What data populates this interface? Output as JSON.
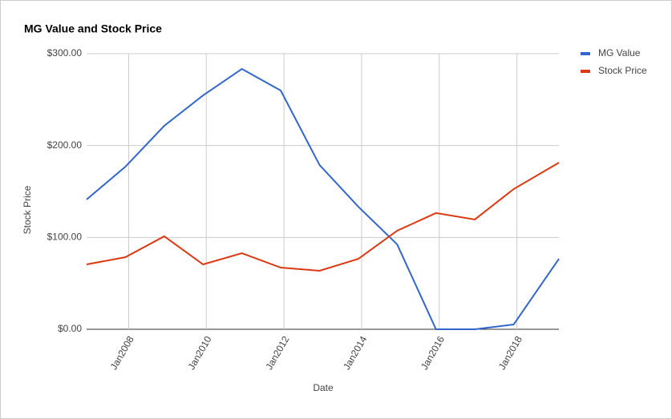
{
  "chart_data": {
    "type": "line",
    "title": "MG Value and Stock Price",
    "x_label": "Date",
    "y_label": "Stock Price",
    "x": [
      "2006-12",
      "2007-12",
      "2008-12",
      "2009-12",
      "2010-12",
      "2011-12",
      "2012-12",
      "2013-12",
      "2014-12",
      "2015-12",
      "2016-12",
      "2017-12",
      "2019-02"
    ],
    "series": [
      {
        "name": "MG Value",
        "color": "#3366cc",
        "values": [
          141.3,
          177,
          221.5,
          254.6,
          283.4,
          259.9,
          178.8,
          133.4,
          92.4,
          0,
          0,
          5.2,
          76.7
        ]
      },
      {
        "name": "Stock Price",
        "color": "#dc3912",
        "values": [
          70.6,
          78.5,
          101.2,
          70.6,
          82.8,
          67.1,
          63.7,
          76.7,
          107.3,
          126.5,
          119.5,
          152.6,
          181.4
        ]
      }
    ],
    "xlim": [
      "2006-12",
      "2019-02"
    ],
    "xticks": [
      {
        "value": "2008-01",
        "label": "Jan2008"
      },
      {
        "value": "2010-01",
        "label": "Jan2010"
      },
      {
        "value": "2012-01",
        "label": "Jan2012"
      },
      {
        "value": "2014-01",
        "label": "Jan2014"
      },
      {
        "value": "2016-01",
        "label": "Jan2016"
      },
      {
        "value": "2018-01",
        "label": "Jan2018"
      }
    ],
    "ylim": [
      0,
      300
    ],
    "yticks": [
      {
        "value": 0,
        "label": "$0.00"
      },
      {
        "value": 100,
        "label": "$100.00"
      },
      {
        "value": 200,
        "label": "$200.00"
      },
      {
        "value": 300,
        "label": "$300.00"
      }
    ],
    "grid": true,
    "legend": "right"
  }
}
